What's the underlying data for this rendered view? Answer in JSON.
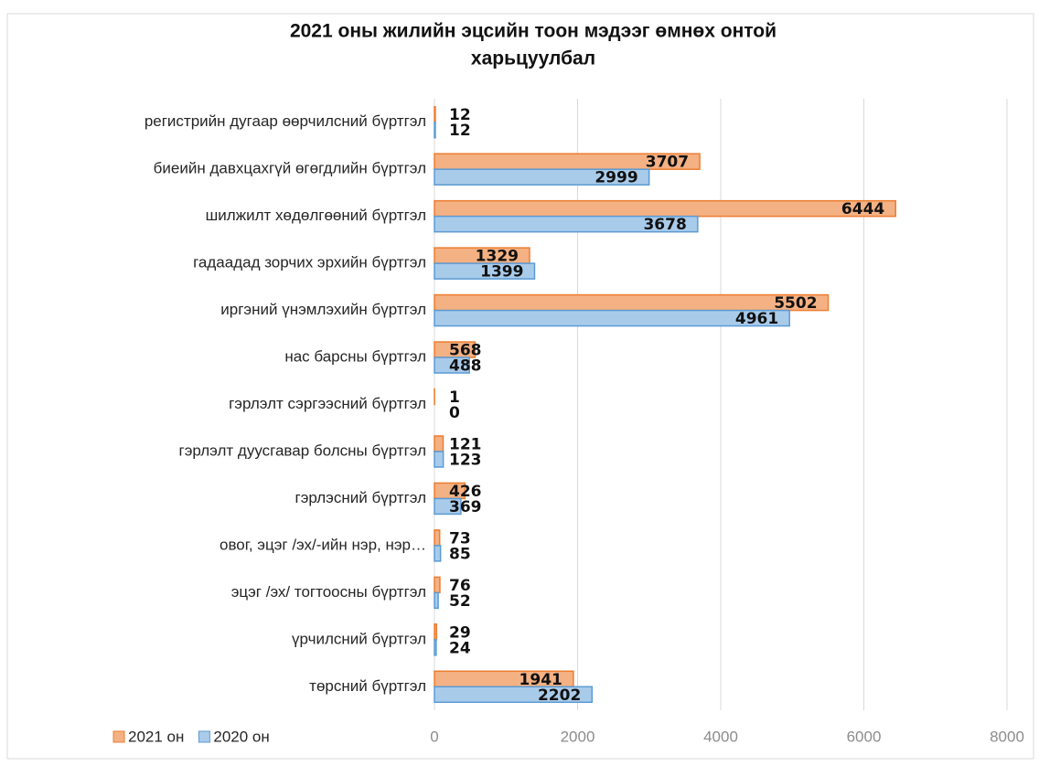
{
  "chart_data": {
    "type": "bar",
    "orientation": "horizontal",
    "title": [
      "2021 оны жилийн эцсийн  тоон мэдээг өмнөх онтой",
      "харьцуулбал"
    ],
    "categories": [
      "регистрийн дугаар өөрчилсний бүртгэл",
      "биеийн давхцахгүй өгөгдлийн бүртгэл",
      "шилжилт хөдөлгөөний бүртгэл",
      "гадаадад зорчих эрхийн бүртгэл",
      "иргэний үнэмлэхийн бүртгэл",
      "нас барсны бүртгэл",
      "гэрлэлт сэргээсний бүртгэл",
      "гэрлэлт дуусгавар болсны бүртгэл",
      "гэрлэсний бүртгэл",
      "овог, эцэг /эх/-ийн нэр, нэр…",
      "эцэг /эх/ тогтоосны бүртгэл",
      "үрчилсний бүртгэл",
      "төрсний бүртгэл"
    ],
    "series": [
      {
        "name": "2021 он",
        "color": "#f4b183",
        "stroke": "#ed7d31",
        "values": [
          12,
          3707,
          6444,
          1329,
          5502,
          568,
          1,
          121,
          426,
          73,
          76,
          29,
          1941
        ]
      },
      {
        "name": "2020 он",
        "color": "#a9cbea",
        "stroke": "#5b9bd5",
        "values": [
          12,
          2999,
          3678,
          1399,
          4961,
          488,
          0,
          123,
          369,
          85,
          52,
          24,
          2202
        ]
      }
    ],
    "xlim": [
      0,
      8000
    ],
    "xticks": [
      0,
      2000,
      4000,
      6000,
      8000
    ],
    "grid": true,
    "legend": "bottom-left"
  }
}
